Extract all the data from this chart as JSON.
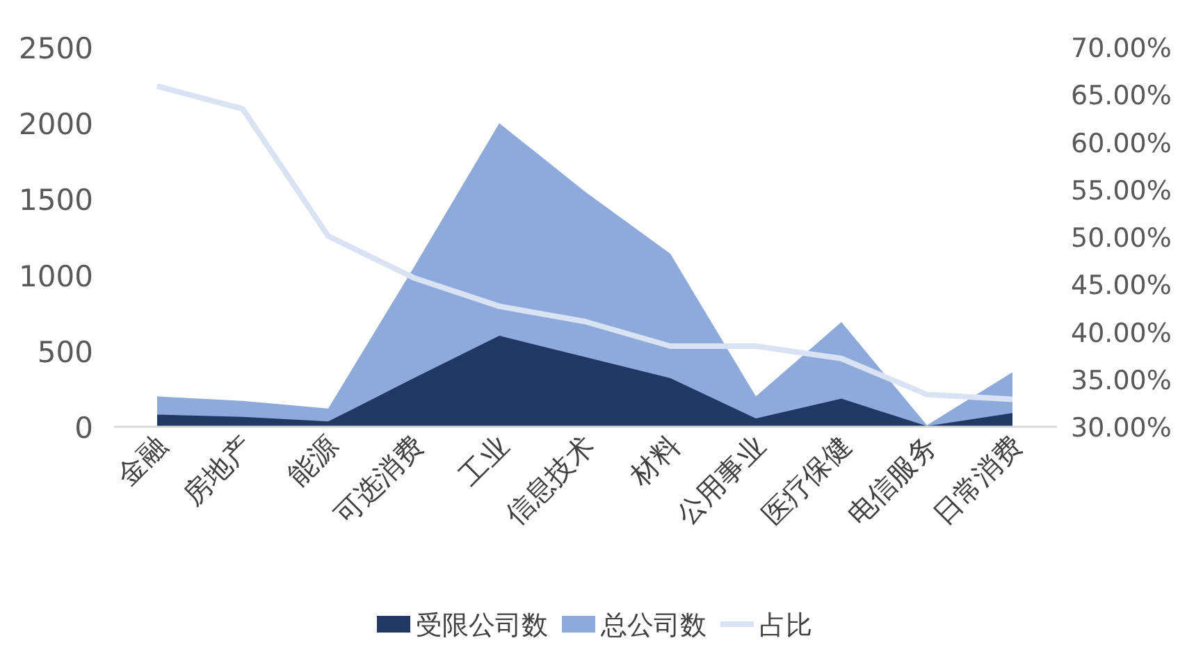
{
  "chart_data": {
    "type": "area",
    "categories": [
      "金融",
      "房地产",
      "能源",
      "可选消费",
      "工业",
      "信息技术",
      "材料",
      "公用事业",
      "医疗保健",
      "电信服务",
      "日常消费"
    ],
    "series": [
      {
        "name": "受限公司数",
        "color": "#203864",
        "values": [
          80,
          65,
          35,
          320,
          600,
          460,
          320,
          55,
          185,
          5,
          90
        ]
      },
      {
        "name": "总公司数",
        "color": "#8eaadb",
        "values": [
          200,
          170,
          120,
          1050,
          2000,
          1550,
          1140,
          200,
          690,
          10,
          360
        ]
      },
      {
        "name": "占比",
        "type": "line",
        "axis": "y2",
        "color": "#dae3f3",
        "values": [
          65.9,
          63.5,
          50.1,
          45.7,
          42.7,
          41.1,
          38.5,
          38.5,
          37.2,
          33.4,
          32.9
        ]
      }
    ],
    "ylim": [
      0,
      2500
    ],
    "yticks": [
      0,
      500,
      1000,
      1500,
      2000,
      2500
    ],
    "y2lim": [
      30,
      70
    ],
    "y2ticks": [
      {
        "value": 30,
        "label": "30.00%"
      },
      {
        "value": 35,
        "label": "35.00%"
      },
      {
        "value": 40,
        "label": "40.00%"
      },
      {
        "value": 45,
        "label": "45.00%"
      },
      {
        "value": 50,
        "label": "50.00%"
      },
      {
        "value": 55,
        "label": "55.00%"
      },
      {
        "value": 60,
        "label": "60.00%"
      },
      {
        "value": 65,
        "label": "65.00%"
      },
      {
        "value": 70,
        "label": "70.00%"
      }
    ],
    "legend": "bottom",
    "grid": false
  }
}
